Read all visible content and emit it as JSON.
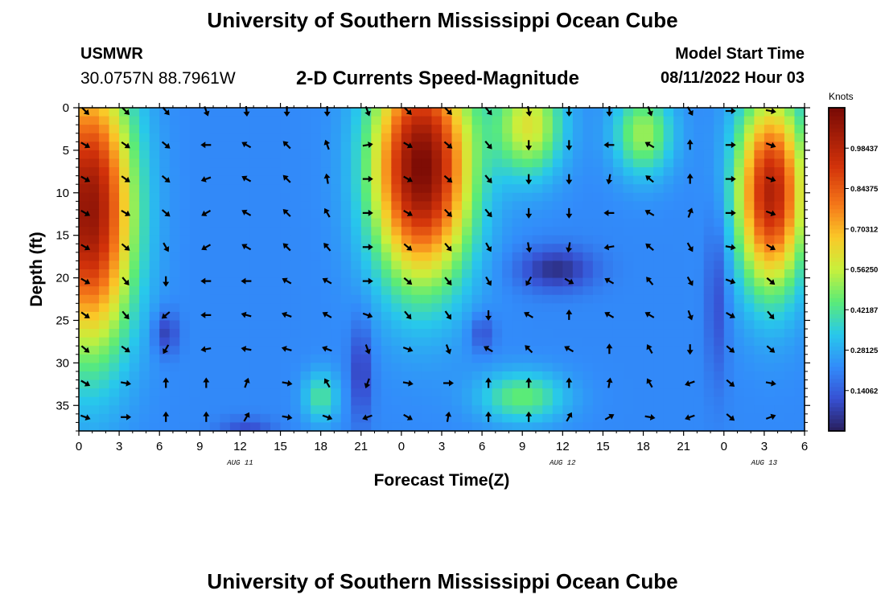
{
  "page": {
    "title_top": "University of Southern Mississippi Ocean Cube",
    "title_bottom": "University of Southern Mississippi Ocean Cube",
    "station": "USMWR",
    "coords": "30.0757N  88.7961W",
    "subtitle": "2-D Currents Speed-Magnitude",
    "model_start_label": "Model Start Time",
    "model_start_value": "08/11/2022 Hour 03"
  },
  "chart_data": {
    "type": "heatmap",
    "title": "2-D Currents Speed-Magnitude",
    "xlabel": "Forecast Time(Z)",
    "ylabel": "Depth (ft)",
    "x_ticks": [
      {
        "h": 0,
        "label": "0"
      },
      {
        "h": 3,
        "label": "3"
      },
      {
        "h": 6,
        "label": "6"
      },
      {
        "h": 9,
        "label": "9"
      },
      {
        "h": 12,
        "label": "12"
      },
      {
        "h": 15,
        "label": "15"
      },
      {
        "h": 18,
        "label": "18"
      },
      {
        "h": 21,
        "label": "21"
      },
      {
        "h": 24,
        "label": "0"
      },
      {
        "h": 27,
        "label": "3"
      },
      {
        "h": 30,
        "label": "6"
      },
      {
        "h": 33,
        "label": "9"
      },
      {
        "h": 36,
        "label": "12"
      },
      {
        "h": 39,
        "label": "15"
      },
      {
        "h": 42,
        "label": "18"
      },
      {
        "h": 45,
        "label": "21"
      },
      {
        "h": 48,
        "label": "0"
      },
      {
        "h": 51,
        "label": "3"
      },
      {
        "h": 54,
        "label": "6"
      }
    ],
    "date_labels": [
      {
        "h": 12,
        "label": "AUG 11"
      },
      {
        "h": 36,
        "label": "AUG 12"
      },
      {
        "h": 51,
        "label": "AUG 13"
      }
    ],
    "y_ticks": [
      0,
      5,
      10,
      15,
      20,
      25,
      30,
      35
    ],
    "xlim": [
      0,
      54
    ],
    "ylim": [
      0,
      38
    ],
    "colorbar": {
      "label": "Knots",
      "range": [
        0.0,
        1.125
      ],
      "ticks": [
        "0.98437",
        "0.84375",
        "0.70312",
        "0.56250",
        "0.42187",
        "0.28125",
        "0.14062"
      ],
      "tick_values": [
        0.98437,
        0.84375,
        0.70312,
        0.5625,
        0.42187,
        0.28125,
        0.14062
      ]
    },
    "speed_features": [
      {
        "h": 0.8,
        "d": 12,
        "sh": 3.2,
        "sd": 16,
        "amp": 0.85
      },
      {
        "h": 25.5,
        "d": 7,
        "sh": 3.6,
        "sd": 13,
        "amp": 0.9
      },
      {
        "h": 33.5,
        "d": 2,
        "sh": 2.5,
        "sd": 6,
        "amp": 0.38
      },
      {
        "h": 42.0,
        "d": 3,
        "sh": 2.2,
        "sd": 5,
        "amp": 0.3
      },
      {
        "h": 51.5,
        "d": 10,
        "sh": 2.5,
        "sd": 11,
        "amp": 0.78
      },
      {
        "h": 18.0,
        "d": 34,
        "sh": 1.3,
        "sd": 3,
        "amp": 0.2
      },
      {
        "h": 33.0,
        "d": 34,
        "sh": 3.2,
        "sd": 3,
        "amp": 0.24
      },
      {
        "h": 6.5,
        "d": 26.5,
        "sh": 0.9,
        "sd": 2.5,
        "amp": -0.15
      },
      {
        "h": 35.5,
        "d": 19,
        "sh": 2.8,
        "sd": 2.5,
        "amp": -0.18
      },
      {
        "h": 30.0,
        "d": 26.5,
        "sh": 0.9,
        "sd": 2.2,
        "amp": -0.12
      },
      {
        "h": 21.0,
        "d": 31,
        "sh": 0.8,
        "sd": 6,
        "amp": -0.15
      },
      {
        "h": 47.5,
        "d": 22,
        "sh": 0.8,
        "sd": 10,
        "amp": -0.12
      },
      {
        "h": 12.5,
        "d": 38,
        "sh": 2,
        "sd": 1.5,
        "amp": -0.12
      }
    ],
    "speed_baseline": 0.22,
    "vectors": [
      {
        "h": 0,
        "d": 0,
        "a": 135
      },
      {
        "h": 3,
        "d": 0,
        "a": 135
      },
      {
        "h": 6,
        "d": 0,
        "a": 140
      },
      {
        "h": 9,
        "d": 0,
        "a": 160
      },
      {
        "h": 12,
        "d": 0,
        "a": 175
      },
      {
        "h": 15,
        "d": 0,
        "a": 180
      },
      {
        "h": 18,
        "d": 0,
        "a": 180
      },
      {
        "h": 21,
        "d": 0,
        "a": 160
      },
      {
        "h": 24,
        "d": 0,
        "a": 135
      },
      {
        "h": 27,
        "d": 0,
        "a": 135
      },
      {
        "h": 30,
        "d": 0,
        "a": 140
      },
      {
        "h": 33,
        "d": 0,
        "a": 170
      },
      {
        "h": 36,
        "d": 0,
        "a": 180
      },
      {
        "h": 39,
        "d": 0,
        "a": 180
      },
      {
        "h": 42,
        "d": 0,
        "a": 160
      },
      {
        "h": 45,
        "d": 0,
        "a": 150
      },
      {
        "h": 48,
        "d": 0,
        "a": 90
      },
      {
        "h": 51,
        "d": 0,
        "a": 100
      },
      {
        "h": 0,
        "d": 4,
        "a": 120
      },
      {
        "h": 3,
        "d": 4,
        "a": 125
      },
      {
        "h": 6,
        "d": 4,
        "a": 130
      },
      {
        "h": 9,
        "d": 4,
        "a": 270
      },
      {
        "h": 12,
        "d": 4,
        "a": 300
      },
      {
        "h": 15,
        "d": 4,
        "a": 315
      },
      {
        "h": 18,
        "d": 4,
        "a": 340
      },
      {
        "h": 21,
        "d": 4,
        "a": 80
      },
      {
        "h": 24,
        "d": 4,
        "a": 120
      },
      {
        "h": 27,
        "d": 4,
        "a": 130
      },
      {
        "h": 30,
        "d": 4,
        "a": 140
      },
      {
        "h": 33,
        "d": 4,
        "a": 180
      },
      {
        "h": 36,
        "d": 4,
        "a": 180
      },
      {
        "h": 39,
        "d": 4,
        "a": 270
      },
      {
        "h": 42,
        "d": 4,
        "a": 300
      },
      {
        "h": 45,
        "d": 4,
        "a": 0
      },
      {
        "h": 48,
        "d": 4,
        "a": 90
      },
      {
        "h": 51,
        "d": 4,
        "a": 110
      },
      {
        "h": 0,
        "d": 8,
        "a": 120
      },
      {
        "h": 3,
        "d": 8,
        "a": 125
      },
      {
        "h": 6,
        "d": 8,
        "a": 130
      },
      {
        "h": 9,
        "d": 8,
        "a": 250
      },
      {
        "h": 12,
        "d": 8,
        "a": 300
      },
      {
        "h": 15,
        "d": 8,
        "a": 315
      },
      {
        "h": 18,
        "d": 8,
        "a": 350
      },
      {
        "h": 21,
        "d": 8,
        "a": 90
      },
      {
        "h": 24,
        "d": 8,
        "a": 120
      },
      {
        "h": 27,
        "d": 8,
        "a": 130
      },
      {
        "h": 30,
        "d": 8,
        "a": 140
      },
      {
        "h": 33,
        "d": 8,
        "a": 180
      },
      {
        "h": 36,
        "d": 8,
        "a": 180
      },
      {
        "h": 39,
        "d": 8,
        "a": 190
      },
      {
        "h": 42,
        "d": 8,
        "a": 310
      },
      {
        "h": 45,
        "d": 8,
        "a": 0
      },
      {
        "h": 48,
        "d": 8,
        "a": 90
      },
      {
        "h": 51,
        "d": 8,
        "a": 110
      },
      {
        "h": 0,
        "d": 12,
        "a": 120
      },
      {
        "h": 3,
        "d": 12,
        "a": 120
      },
      {
        "h": 6,
        "d": 12,
        "a": 130
      },
      {
        "h": 9,
        "d": 12,
        "a": 240
      },
      {
        "h": 12,
        "d": 12,
        "a": 300
      },
      {
        "h": 15,
        "d": 12,
        "a": 315
      },
      {
        "h": 18,
        "d": 12,
        "a": 330
      },
      {
        "h": 21,
        "d": 12,
        "a": 90
      },
      {
        "h": 24,
        "d": 12,
        "a": 120
      },
      {
        "h": 27,
        "d": 12,
        "a": 135
      },
      {
        "h": 30,
        "d": 12,
        "a": 140
      },
      {
        "h": 33,
        "d": 12,
        "a": 180
      },
      {
        "h": 36,
        "d": 12,
        "a": 180
      },
      {
        "h": 39,
        "d": 12,
        "a": 270
      },
      {
        "h": 42,
        "d": 12,
        "a": 300
      },
      {
        "h": 45,
        "d": 12,
        "a": 20
      },
      {
        "h": 48,
        "d": 12,
        "a": 90
      },
      {
        "h": 51,
        "d": 12,
        "a": 110
      },
      {
        "h": 0,
        "d": 16,
        "a": 120
      },
      {
        "h": 3,
        "d": 16,
        "a": 130
      },
      {
        "h": 6,
        "d": 16,
        "a": 150
      },
      {
        "h": 9,
        "d": 16,
        "a": 240
      },
      {
        "h": 12,
        "d": 16,
        "a": 300
      },
      {
        "h": 15,
        "d": 16,
        "a": 315
      },
      {
        "h": 18,
        "d": 16,
        "a": 320
      },
      {
        "h": 21,
        "d": 16,
        "a": 90
      },
      {
        "h": 24,
        "d": 16,
        "a": 130
      },
      {
        "h": 27,
        "d": 16,
        "a": 140
      },
      {
        "h": 30,
        "d": 16,
        "a": 150
      },
      {
        "h": 33,
        "d": 16,
        "a": 170
      },
      {
        "h": 36,
        "d": 16,
        "a": 190
      },
      {
        "h": 39,
        "d": 16,
        "a": 260
      },
      {
        "h": 42,
        "d": 16,
        "a": 310
      },
      {
        "h": 45,
        "d": 16,
        "a": 150
      },
      {
        "h": 48,
        "d": 16,
        "a": 100
      },
      {
        "h": 51,
        "d": 16,
        "a": 120
      },
      {
        "h": 0,
        "d": 20,
        "a": 120
      },
      {
        "h": 3,
        "d": 20,
        "a": 140
      },
      {
        "h": 6,
        "d": 20,
        "a": 180
      },
      {
        "h": 9,
        "d": 20,
        "a": 270
      },
      {
        "h": 12,
        "d": 20,
        "a": 270
      },
      {
        "h": 15,
        "d": 20,
        "a": 300
      },
      {
        "h": 18,
        "d": 20,
        "a": 300
      },
      {
        "h": 21,
        "d": 20,
        "a": 90
      },
      {
        "h": 24,
        "d": 20,
        "a": 130
      },
      {
        "h": 27,
        "d": 20,
        "a": 140
      },
      {
        "h": 30,
        "d": 20,
        "a": 150
      },
      {
        "h": 33,
        "d": 20,
        "a": 210
      },
      {
        "h": 36,
        "d": 20,
        "a": 120
      },
      {
        "h": 39,
        "d": 20,
        "a": 300
      },
      {
        "h": 42,
        "d": 20,
        "a": 320
      },
      {
        "h": 45,
        "d": 20,
        "a": 150
      },
      {
        "h": 48,
        "d": 20,
        "a": 110
      },
      {
        "h": 51,
        "d": 20,
        "a": 130
      },
      {
        "h": 0,
        "d": 24,
        "a": 125
      },
      {
        "h": 3,
        "d": 24,
        "a": 140
      },
      {
        "h": 6,
        "d": 24,
        "a": 230
      },
      {
        "h": 9,
        "d": 24,
        "a": 270
      },
      {
        "h": 12,
        "d": 24,
        "a": 285
      },
      {
        "h": 15,
        "d": 24,
        "a": 290
      },
      {
        "h": 18,
        "d": 24,
        "a": 300
      },
      {
        "h": 21,
        "d": 24,
        "a": 110
      },
      {
        "h": 24,
        "d": 24,
        "a": 140
      },
      {
        "h": 27,
        "d": 24,
        "a": 145
      },
      {
        "h": 30,
        "d": 24,
        "a": 180
      },
      {
        "h": 33,
        "d": 24,
        "a": 300
      },
      {
        "h": 36,
        "d": 24,
        "a": 0
      },
      {
        "h": 39,
        "d": 24,
        "a": 300
      },
      {
        "h": 42,
        "d": 24,
        "a": 300
      },
      {
        "h": 45,
        "d": 24,
        "a": 160
      },
      {
        "h": 48,
        "d": 24,
        "a": 120
      },
      {
        "h": 51,
        "d": 24,
        "a": 140
      },
      {
        "h": 0,
        "d": 28,
        "a": 130
      },
      {
        "h": 3,
        "d": 28,
        "a": 125
      },
      {
        "h": 6,
        "d": 28,
        "a": 210
      },
      {
        "h": 9,
        "d": 28,
        "a": 260
      },
      {
        "h": 12,
        "d": 28,
        "a": 280
      },
      {
        "h": 15,
        "d": 28,
        "a": 285
      },
      {
        "h": 18,
        "d": 28,
        "a": 290
      },
      {
        "h": 21,
        "d": 28,
        "a": 160
      },
      {
        "h": 24,
        "d": 28,
        "a": 110
      },
      {
        "h": 27,
        "d": 28,
        "a": 160
      },
      {
        "h": 30,
        "d": 28,
        "a": 300
      },
      {
        "h": 33,
        "d": 28,
        "a": 315
      },
      {
        "h": 36,
        "d": 28,
        "a": 300
      },
      {
        "h": 39,
        "d": 28,
        "a": 0
      },
      {
        "h": 42,
        "d": 28,
        "a": 330
      },
      {
        "h": 45,
        "d": 28,
        "a": 180
      },
      {
        "h": 48,
        "d": 28,
        "a": 130
      },
      {
        "h": 51,
        "d": 28,
        "a": 130
      },
      {
        "h": 0,
        "d": 32,
        "a": 120
      },
      {
        "h": 3,
        "d": 32,
        "a": 100
      },
      {
        "h": 6,
        "d": 32,
        "a": 0
      },
      {
        "h": 9,
        "d": 32,
        "a": 0
      },
      {
        "h": 12,
        "d": 32,
        "a": 20
      },
      {
        "h": 15,
        "d": 32,
        "a": 100
      },
      {
        "h": 18,
        "d": 32,
        "a": 330
      },
      {
        "h": 21,
        "d": 32,
        "a": 200
      },
      {
        "h": 24,
        "d": 32,
        "a": 100
      },
      {
        "h": 27,
        "d": 32,
        "a": 90
      },
      {
        "h": 30,
        "d": 32,
        "a": 0
      },
      {
        "h": 33,
        "d": 32,
        "a": 0
      },
      {
        "h": 36,
        "d": 32,
        "a": 0
      },
      {
        "h": 39,
        "d": 32,
        "a": 10
      },
      {
        "h": 42,
        "d": 32,
        "a": 330
      },
      {
        "h": 45,
        "d": 32,
        "a": 250
      },
      {
        "h": 48,
        "d": 32,
        "a": 130
      },
      {
        "h": 51,
        "d": 32,
        "a": 100
      },
      {
        "h": 0,
        "d": 36,
        "a": 110
      },
      {
        "h": 3,
        "d": 36,
        "a": 90
      },
      {
        "h": 6,
        "d": 36,
        "a": 0
      },
      {
        "h": 9,
        "d": 36,
        "a": 0
      },
      {
        "h": 12,
        "d": 36,
        "a": 30
      },
      {
        "h": 15,
        "d": 36,
        "a": 100
      },
      {
        "h": 18,
        "d": 36,
        "a": 110
      },
      {
        "h": 21,
        "d": 36,
        "a": 250
      },
      {
        "h": 24,
        "d": 36,
        "a": 120
      },
      {
        "h": 27,
        "d": 36,
        "a": 10
      },
      {
        "h": 30,
        "d": 36,
        "a": 0
      },
      {
        "h": 33,
        "d": 36,
        "a": 0
      },
      {
        "h": 36,
        "d": 36,
        "a": 30
      },
      {
        "h": 39,
        "d": 36,
        "a": 60
      },
      {
        "h": 42,
        "d": 36,
        "a": 100
      },
      {
        "h": 45,
        "d": 36,
        "a": 250
      },
      {
        "h": 48,
        "d": 36,
        "a": 130
      },
      {
        "h": 51,
        "d": 36,
        "a": 70
      }
    ]
  }
}
